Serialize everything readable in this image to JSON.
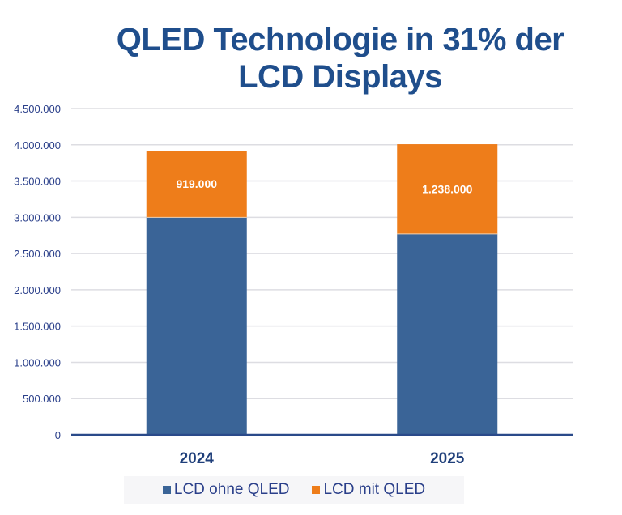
{
  "chart_data": {
    "type": "bar",
    "stacked": true,
    "title": "QLED Technologie in 31% der LCD Displays",
    "title_lines": [
      "QLED Technologie in 31% der",
      "LCD Displays"
    ],
    "categories": [
      "2024",
      "2025"
    ],
    "series": [
      {
        "name": "LCD ohne QLED",
        "color": "#3a6497",
        "values": [
          3000000,
          2770000
        ]
      },
      {
        "name": "LCD mit QLED",
        "color": "#ee7d1a",
        "values": [
          919000,
          1238000
        ]
      }
    ],
    "data_labels": [
      {
        "series": "LCD mit QLED",
        "category": "2024",
        "text": "919.000"
      },
      {
        "series": "LCD mit QLED",
        "category": "2025",
        "text": "1.238.000"
      }
    ],
    "ylim": [
      0,
      4500000
    ],
    "yticks": [
      0,
      500000,
      1000000,
      1500000,
      2000000,
      2500000,
      3000000,
      3500000,
      4000000,
      4500000
    ],
    "ytick_labels": [
      "0",
      "500.000",
      "1.000.000",
      "1.500.000",
      "2.000.000",
      "2.500.000",
      "3.000.000",
      "3.500.000",
      "4.000.000",
      "4.500.000"
    ],
    "xlabel": "",
    "ylabel": "",
    "grid": true,
    "legend_position": "bottom"
  },
  "colors": {
    "title": "#1f4e8c",
    "axis_text": "#2a3f8a",
    "grid": "#dddde2",
    "baseline": "#2a4a8a",
    "label_text": "#ffffff"
  }
}
